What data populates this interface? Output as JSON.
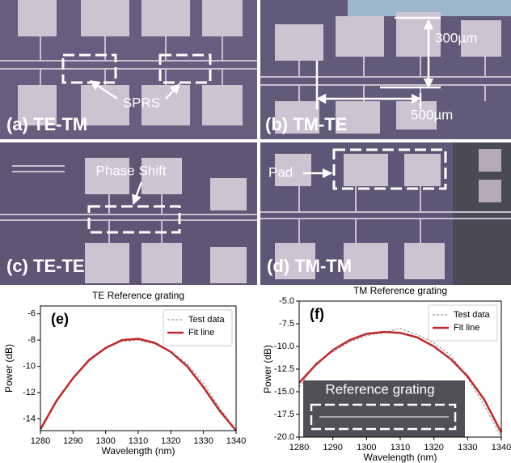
{
  "panels": [
    {
      "label": "(a) TE-TM",
      "annotation": "SPRS"
    },
    {
      "label": "(b) TM-TE",
      "annotations": [
        "300µm",
        "500µm"
      ]
    },
    {
      "label": "(c) TE-TE",
      "annotation": "Phase Shift"
    },
    {
      "label": "(d) TM-TM",
      "annotation": "Pad"
    }
  ],
  "chart_data": [
    {
      "type": "line",
      "title": "TE Reference grating",
      "panel_label": "(e)",
      "x_label": "Wavelength (nm)",
      "y_label": "Power (dB)",
      "x": [
        1280,
        1285,
        1290,
        1295,
        1300,
        1305,
        1310,
        1315,
        1320,
        1325,
        1330,
        1335,
        1340
      ],
      "series": [
        {
          "name": "Test data",
          "color": "#9a9a9a",
          "dashed": true,
          "values": [
            -14.8,
            -12.7,
            -10.9,
            -9.6,
            -8.6,
            -8.1,
            -8.0,
            -8.3,
            -8.9,
            -9.8,
            -11.3,
            -13.2,
            -14.9
          ]
        },
        {
          "name": "Fit line",
          "color": "#c0282a",
          "dashed": false,
          "values": [
            -14.8,
            -12.6,
            -10.9,
            -9.5,
            -8.6,
            -8.0,
            -7.9,
            -8.2,
            -8.9,
            -10.0,
            -11.6,
            -13.4,
            -14.9
          ]
        }
      ],
      "xlim": [
        1280,
        1340
      ],
      "xticks": [
        1280,
        1290,
        1300,
        1310,
        1320,
        1330,
        1340
      ],
      "ylim": [
        -14.9,
        -5.4
      ],
      "yticks": [
        -14,
        -12,
        -10,
        -8,
        -6
      ],
      "legend": "upper right",
      "grid": false
    },
    {
      "type": "line",
      "title": "TM Reference grating",
      "panel_label": "(f)",
      "inset_label": "Reference grating",
      "x_label": "Wavelength (nm)",
      "y_label": "Power (dB)",
      "x": [
        1280,
        1285,
        1290,
        1295,
        1300,
        1305,
        1310,
        1315,
        1320,
        1325,
        1330,
        1335,
        1340
      ],
      "series": [
        {
          "name": "Test data",
          "color": "#9a9a9a",
          "dashed": true,
          "values": [
            -14.5,
            -11.8,
            -10.6,
            -9.5,
            -8.8,
            -8.5,
            -8.0,
            -8.7,
            -9.6,
            -11.0,
            -13.5,
            -16.5,
            -20.0
          ]
        },
        {
          "name": "Fit line",
          "color": "#c0282a",
          "dashed": false,
          "values": [
            -14.0,
            -12.0,
            -10.4,
            -9.3,
            -8.6,
            -8.4,
            -8.5,
            -9.0,
            -10.0,
            -11.4,
            -13.3,
            -15.9,
            -19.5
          ]
        }
      ],
      "xlim": [
        1280,
        1340
      ],
      "xticks": [
        1280,
        1290,
        1300,
        1310,
        1320,
        1330,
        1340
      ],
      "ylim": [
        -20,
        -5
      ],
      "yticks": [
        {
          "value": -5,
          "label": "-5.0"
        },
        {
          "value": -7.5,
          "label": "-7.5"
        },
        {
          "value": -10,
          "label": "-10.0"
        },
        {
          "value": -12.5,
          "label": "-12.5"
        },
        {
          "value": -15,
          "label": "-15.0"
        },
        {
          "value": -17.5,
          "label": "-17.5"
        },
        {
          "value": -20,
          "label": "-20.0"
        }
      ],
      "legend": "upper right",
      "grid": false
    }
  ]
}
